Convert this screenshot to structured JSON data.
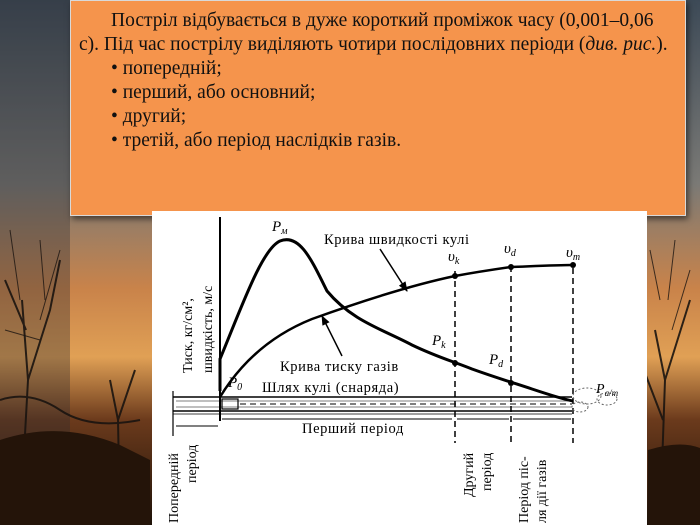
{
  "slide": {
    "intro_before": "Постріл відбувається в дуже короткий проміжок часу (0,001–0,06 с). Під час пострілу виділяють чотири послідовних періоди (",
    "intro_italic": "див. рис.",
    "intro_after": ").",
    "bullets": [
      "• попередній;",
      "• перший, або основний;",
      "• другий;",
      "• третій, або період наслідків газів."
    ]
  },
  "figure": {
    "y_axis_label_line1": "Тиск, кг/см², ",
    "y_axis_label_line2": "швидкість, м/с",
    "velocity_curve_label": "Крива швидкості кулі",
    "pressure_curve_label": "Крива тиску газів",
    "path_label": "Шлях кулі (снаряда)",
    "period_first": "Перший період",
    "period_preliminary_line1": "Попередній",
    "period_preliminary_line2": "період",
    "period_second_line1": "Другий",
    "period_second_line2": "період",
    "period_third_line1": "Період піс-",
    "period_third_line2": "ля дії газів",
    "points": {
      "Pm": {
        "main": "P",
        "sub": "м"
      },
      "P0": {
        "main": "P",
        "sub": "0"
      },
      "Pk": {
        "main": "P",
        "sub": "k"
      },
      "Pd": {
        "main": "P",
        "sub": "d"
      },
      "Pam": {
        "main": "P",
        "sub": "a/m"
      },
      "vk": {
        "main": "υ",
        "sub": "k"
      },
      "vd": {
        "main": "υ",
        "sub": "d"
      },
      "vm": {
        "main": "υ",
        "sub": "m"
      }
    }
  }
}
